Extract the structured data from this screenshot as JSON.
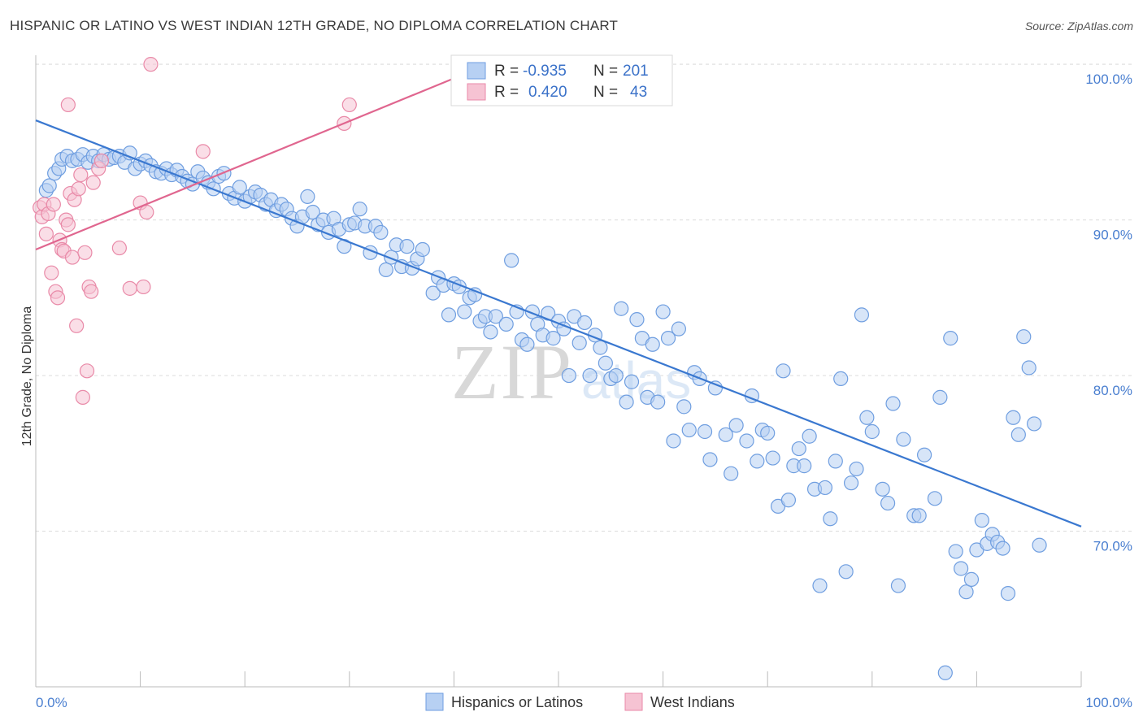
{
  "title": "HISPANIC OR LATINO VS WEST INDIAN 12TH GRADE, NO DIPLOMA CORRELATION CHART",
  "source": "Source: ZipAtlas.com",
  "watermark": {
    "zip": "ZIP",
    "atlas": "atlas"
  },
  "colors": {
    "blue_fill": "#b7d0f3",
    "blue_stroke": "#6f9ee0",
    "blue_line": "#3a78d0",
    "pink_fill": "#f6c3d3",
    "pink_stroke": "#e98aa8",
    "pink_line": "#e0668f",
    "grid": "#dcdcdc",
    "tick_text": "#4a7fd0"
  },
  "legend": {
    "rows": [
      {
        "r_label": "R =",
        "r_value": "-0.935",
        "n_label": "N =",
        "n_value": "201"
      },
      {
        "r_label": "R =",
        "r_value": "0.420",
        "n_label": "N =",
        "n_value": "43"
      }
    ]
  },
  "chart_data": {
    "type": "scatter",
    "xlabel": "",
    "ylabel": "12th Grade, No Diploma",
    "xlim": [
      0,
      100
    ],
    "ylim": [
      60,
      101
    ],
    "x_tick_labels": [
      "0.0%",
      "100.0%"
    ],
    "y_ticks": [
      70,
      80,
      90,
      100
    ],
    "y_tick_labels": [
      "70.0%",
      "80.0%",
      "90.0%",
      "100.0%"
    ],
    "grid": true,
    "legend_position": "bottom",
    "series": [
      {
        "name": "Hispanics or Latinos",
        "color": "#b7d0f3",
        "trend": {
          "x": [
            0,
            100
          ],
          "y": [
            96.4,
            70.3
          ]
        },
        "points": [
          [
            1,
            91.9
          ],
          [
            1.3,
            92.2
          ],
          [
            1.8,
            93.0
          ],
          [
            2.2,
            93.3
          ],
          [
            2.5,
            93.9
          ],
          [
            3,
            94.1
          ],
          [
            3.5,
            93.8
          ],
          [
            4,
            93.9
          ],
          [
            4.5,
            94.2
          ],
          [
            5,
            93.7
          ],
          [
            5.5,
            94.1
          ],
          [
            6,
            93.8
          ],
          [
            6.5,
            94.2
          ],
          [
            7,
            93.9
          ],
          [
            7.5,
            94.0
          ],
          [
            8,
            94.1
          ],
          [
            8.5,
            93.7
          ],
          [
            9,
            94.3
          ],
          [
            9.5,
            93.3
          ],
          [
            10,
            93.6
          ],
          [
            10.5,
            93.8
          ],
          [
            11,
            93.5
          ],
          [
            11.5,
            93.1
          ],
          [
            12,
            93.0
          ],
          [
            12.5,
            93.3
          ],
          [
            13,
            92.9
          ],
          [
            13.5,
            93.2
          ],
          [
            14,
            92.8
          ],
          [
            14.5,
            92.5
          ],
          [
            15,
            92.3
          ],
          [
            15.5,
            93.1
          ],
          [
            16,
            92.7
          ],
          [
            16.5,
            92.4
          ],
          [
            17,
            92.0
          ],
          [
            17.5,
            92.8
          ],
          [
            18,
            93.0
          ],
          [
            18.5,
            91.7
          ],
          [
            19,
            91.4
          ],
          [
            19.5,
            92.1
          ],
          [
            20,
            91.2
          ],
          [
            20.5,
            91.5
          ],
          [
            21,
            91.8
          ],
          [
            21.5,
            91.6
          ],
          [
            22,
            91.0
          ],
          [
            22.5,
            91.3
          ],
          [
            23,
            90.6
          ],
          [
            23.5,
            91.0
          ],
          [
            24,
            90.7
          ],
          [
            24.5,
            90.1
          ],
          [
            25,
            89.6
          ],
          [
            25.5,
            90.2
          ],
          [
            26,
            91.5
          ],
          [
            26.5,
            90.5
          ],
          [
            27,
            89.7
          ],
          [
            27.5,
            90.0
          ],
          [
            28,
            89.2
          ],
          [
            28.5,
            90.1
          ],
          [
            29,
            89.4
          ],
          [
            29.5,
            88.3
          ],
          [
            30,
            89.7
          ],
          [
            30.5,
            89.8
          ],
          [
            31,
            90.7
          ],
          [
            31.5,
            89.6
          ],
          [
            32,
            87.9
          ],
          [
            32.5,
            89.6
          ],
          [
            33,
            89.2
          ],
          [
            33.5,
            86.8
          ],
          [
            34,
            87.6
          ],
          [
            34.5,
            88.4
          ],
          [
            35,
            87.0
          ],
          [
            35.5,
            88.3
          ],
          [
            36,
            86.9
          ],
          [
            36.5,
            87.5
          ],
          [
            37,
            88.1
          ],
          [
            38,
            85.3
          ],
          [
            38.5,
            86.3
          ],
          [
            39,
            85.8
          ],
          [
            39.5,
            83.9
          ],
          [
            40,
            85.9
          ],
          [
            40.5,
            85.7
          ],
          [
            41,
            84.1
          ],
          [
            41.5,
            85.0
          ],
          [
            42,
            85.2
          ],
          [
            42.5,
            83.5
          ],
          [
            43,
            83.8
          ],
          [
            43.5,
            82.8
          ],
          [
            44,
            83.8
          ],
          [
            45,
            83.3
          ],
          [
            45.5,
            87.4
          ],
          [
            46,
            84.1
          ],
          [
            46.5,
            82.3
          ],
          [
            47,
            82.0
          ],
          [
            47.5,
            84.1
          ],
          [
            48,
            83.3
          ],
          [
            48.5,
            82.6
          ],
          [
            49,
            84.0
          ],
          [
            49.5,
            82.4
          ],
          [
            50,
            83.5
          ],
          [
            50.5,
            83.0
          ],
          [
            51,
            80.0
          ],
          [
            51.5,
            83.8
          ],
          [
            52,
            82.1
          ],
          [
            52.5,
            83.4
          ],
          [
            53,
            80.0
          ],
          [
            53.5,
            82.6
          ],
          [
            54,
            81.8
          ],
          [
            54.5,
            80.8
          ],
          [
            55,
            79.8
          ],
          [
            55.5,
            80.0
          ],
          [
            56,
            84.3
          ],
          [
            56.5,
            78.3
          ],
          [
            57,
            79.6
          ],
          [
            57.5,
            83.6
          ],
          [
            58,
            82.4
          ],
          [
            58.5,
            78.6
          ],
          [
            59,
            82.0
          ],
          [
            59.5,
            78.3
          ],
          [
            60,
            84.1
          ],
          [
            60.5,
            82.4
          ],
          [
            61,
            75.8
          ],
          [
            61.5,
            83.0
          ],
          [
            62,
            78.0
          ],
          [
            62.5,
            76.5
          ],
          [
            63,
            80.2
          ],
          [
            63.5,
            79.8
          ],
          [
            64,
            76.4
          ],
          [
            64.5,
            74.6
          ],
          [
            65,
            79.2
          ],
          [
            66,
            76.2
          ],
          [
            66.5,
            73.7
          ],
          [
            67,
            76.8
          ],
          [
            68,
            75.8
          ],
          [
            68.5,
            78.7
          ],
          [
            69,
            74.5
          ],
          [
            69.5,
            76.5
          ],
          [
            70,
            76.3
          ],
          [
            70.5,
            74.7
          ],
          [
            71,
            71.6
          ],
          [
            71.5,
            80.3
          ],
          [
            72,
            72.0
          ],
          [
            72.5,
            74.2
          ],
          [
            73,
            75.3
          ],
          [
            73.5,
            74.2
          ],
          [
            74,
            76.1
          ],
          [
            74.5,
            72.7
          ],
          [
            75,
            66.5
          ],
          [
            75.5,
            72.8
          ],
          [
            76,
            70.8
          ],
          [
            76.5,
            74.5
          ],
          [
            77,
            79.8
          ],
          [
            77.5,
            67.4
          ],
          [
            78,
            73.1
          ],
          [
            78.5,
            74.0
          ],
          [
            79,
            83.9
          ],
          [
            79.5,
            77.3
          ],
          [
            80,
            76.4
          ],
          [
            81,
            72.7
          ],
          [
            81.5,
            71.8
          ],
          [
            82,
            78.2
          ],
          [
            82.5,
            66.5
          ],
          [
            83,
            75.9
          ],
          [
            84,
            71.0
          ],
          [
            84.5,
            71.0
          ],
          [
            85,
            74.9
          ],
          [
            86,
            72.1
          ],
          [
            86.5,
            78.6
          ],
          [
            87,
            60.9
          ],
          [
            87.5,
            82.4
          ],
          [
            88,
            68.7
          ],
          [
            88.5,
            67.6
          ],
          [
            89,
            66.1
          ],
          [
            89.5,
            66.9
          ],
          [
            90,
            68.8
          ],
          [
            90.5,
            70.7
          ],
          [
            91,
            69.2
          ],
          [
            91.5,
            69.8
          ],
          [
            92,
            69.3
          ],
          [
            92.5,
            68.9
          ],
          [
            93,
            66.0
          ],
          [
            93.5,
            77.3
          ],
          [
            94,
            76.2
          ],
          [
            94.5,
            82.5
          ],
          [
            95,
            80.5
          ],
          [
            95.5,
            76.9
          ],
          [
            96,
            69.1
          ]
        ]
      },
      {
        "name": "West Indians",
        "color": "#f6c3d3",
        "trend": {
          "x": [
            0,
            40
          ],
          "y": [
            88.1,
            99.1
          ]
        },
        "points": [
          [
            0.4,
            90.8
          ],
          [
            0.6,
            90.2
          ],
          [
            0.8,
            91.0
          ],
          [
            1,
            89.1
          ],
          [
            1.2,
            90.4
          ],
          [
            1.5,
            86.6
          ],
          [
            1.7,
            91.0
          ],
          [
            1.9,
            85.4
          ],
          [
            2.1,
            85.0
          ],
          [
            2.3,
            88.7
          ],
          [
            2.5,
            88.1
          ],
          [
            2.7,
            88.0
          ],
          [
            2.9,
            90.0
          ],
          [
            3.1,
            89.7
          ],
          [
            3.3,
            91.7
          ],
          [
            3.5,
            87.6
          ],
          [
            3.7,
            91.3
          ],
          [
            3.9,
            83.2
          ],
          [
            4.1,
            92.0
          ],
          [
            4.3,
            92.9
          ],
          [
            4.5,
            78.6
          ],
          [
            4.7,
            87.9
          ],
          [
            4.9,
            80.3
          ],
          [
            5.1,
            85.7
          ],
          [
            5.3,
            85.4
          ],
          [
            5.5,
            92.4
          ],
          [
            6,
            93.3
          ],
          [
            6.3,
            93.8
          ],
          [
            3.1,
            97.4
          ],
          [
            8,
            88.2
          ],
          [
            9,
            85.6
          ],
          [
            10,
            91.1
          ],
          [
            10.3,
            85.7
          ],
          [
            10.6,
            90.5
          ],
          [
            11,
            100.0
          ],
          [
            16,
            94.4
          ],
          [
            29.5,
            96.2
          ],
          [
            30,
            97.4
          ]
        ]
      }
    ]
  },
  "bottom_legend": [
    "Hispanics or Latinos",
    "West Indians"
  ]
}
